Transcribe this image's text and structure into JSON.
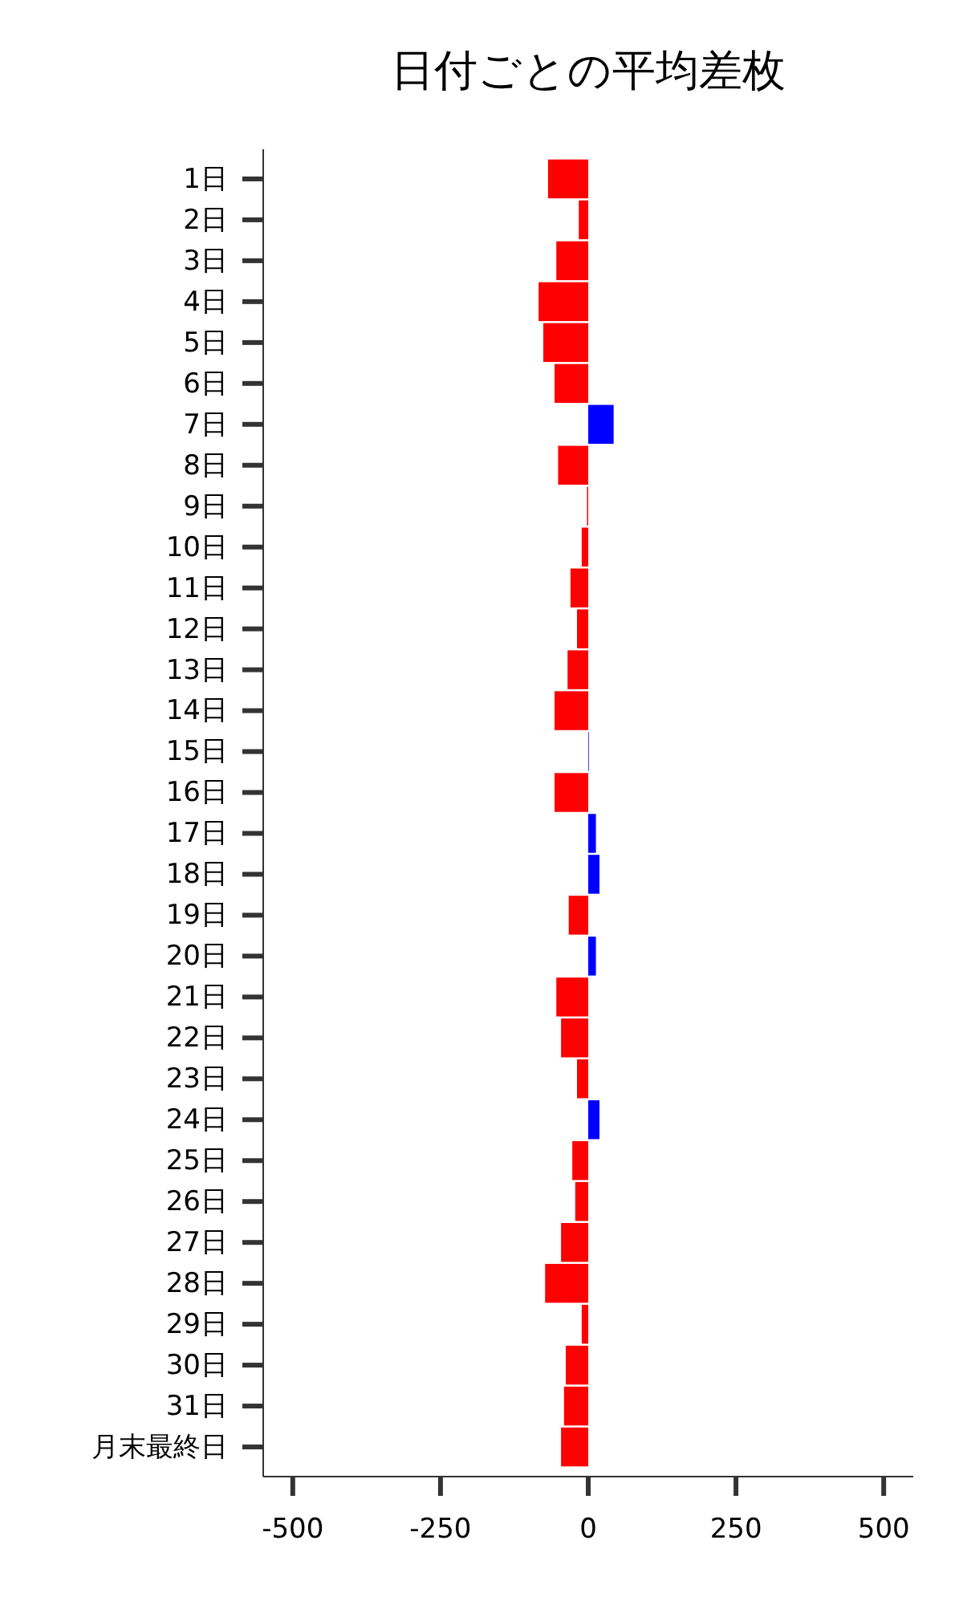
{
  "chart_data": {
    "type": "bar",
    "orientation": "horizontal",
    "title": "日付ごとの平均差枚",
    "categories": [
      "1日",
      "2日",
      "3日",
      "4日",
      "5日",
      "6日",
      "7日",
      "8日",
      "9日",
      "10日",
      "11日",
      "12日",
      "13日",
      "14日",
      "15日",
      "16日",
      "17日",
      "18日",
      "19日",
      "20日",
      "21日",
      "22日",
      "23日",
      "24日",
      "25日",
      "26日",
      "27日",
      "28日",
      "29日",
      "30日",
      "31日",
      "月末最終日"
    ],
    "values": [
      -68,
      -16,
      -54,
      -84,
      -76,
      -57,
      43,
      -51,
      -2,
      -11,
      -30,
      -19,
      -35,
      -57,
      1,
      -57,
      13,
      19,
      -33,
      13,
      -54,
      -46,
      -19,
      19,
      -27,
      -22,
      -46,
      -73,
      -11,
      -38,
      -41,
      -46
    ],
    "colors": [
      "#ff0000",
      "#ff0000",
      "#ff0000",
      "#ff0000",
      "#ff0000",
      "#ff0000",
      "#0000ff",
      "#ff0000",
      "#ff0000",
      "#ff0000",
      "#ff0000",
      "#ff0000",
      "#ff0000",
      "#ff0000",
      "#0000ff",
      "#ff0000",
      "#0000ff",
      "#0000ff",
      "#ff0000",
      "#0000ff",
      "#ff0000",
      "#ff0000",
      "#ff0000",
      "#0000ff",
      "#ff0000",
      "#ff0000",
      "#ff0000",
      "#ff0000",
      "#ff0000",
      "#ff0000",
      "#ff0000",
      "#ff0000"
    ],
    "xlim": [
      -550,
      550
    ],
    "xticks": [
      -500,
      -250,
      0,
      250,
      500
    ],
    "grid": false
  }
}
